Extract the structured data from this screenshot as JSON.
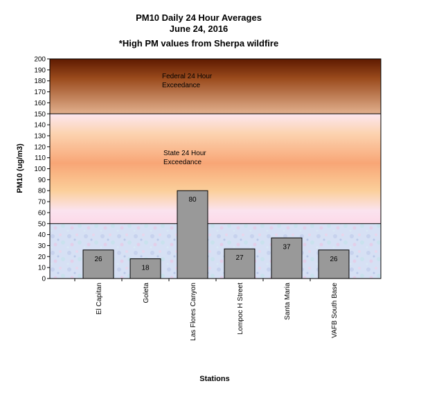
{
  "chart_data": {
    "type": "bar",
    "title": "PM10 Daily 24 Hour Averages",
    "subtitle": "June 24, 2016",
    "note": "*High PM values from Sherpa wildfire",
    "xlabel": "Stations",
    "ylabel": "PM10 (ug/m3)",
    "ylim": [
      0,
      200
    ],
    "ytick_step": 10,
    "categories": [
      "El Capitan",
      "Goleta",
      "Las Flores Canyon",
      "Lompoc H Street",
      "Santa Maria",
      "VAFB South Base"
    ],
    "values": [
      26,
      18,
      80,
      27,
      37,
      26
    ],
    "bar_color": "#999999",
    "zones": [
      {
        "label": "Federal 24 Hour\nExceedance",
        "from": 150,
        "to": 200
      },
      {
        "label": "State 24 Hour\nExceedance",
        "from": 50,
        "to": 150
      }
    ],
    "grid": false
  }
}
